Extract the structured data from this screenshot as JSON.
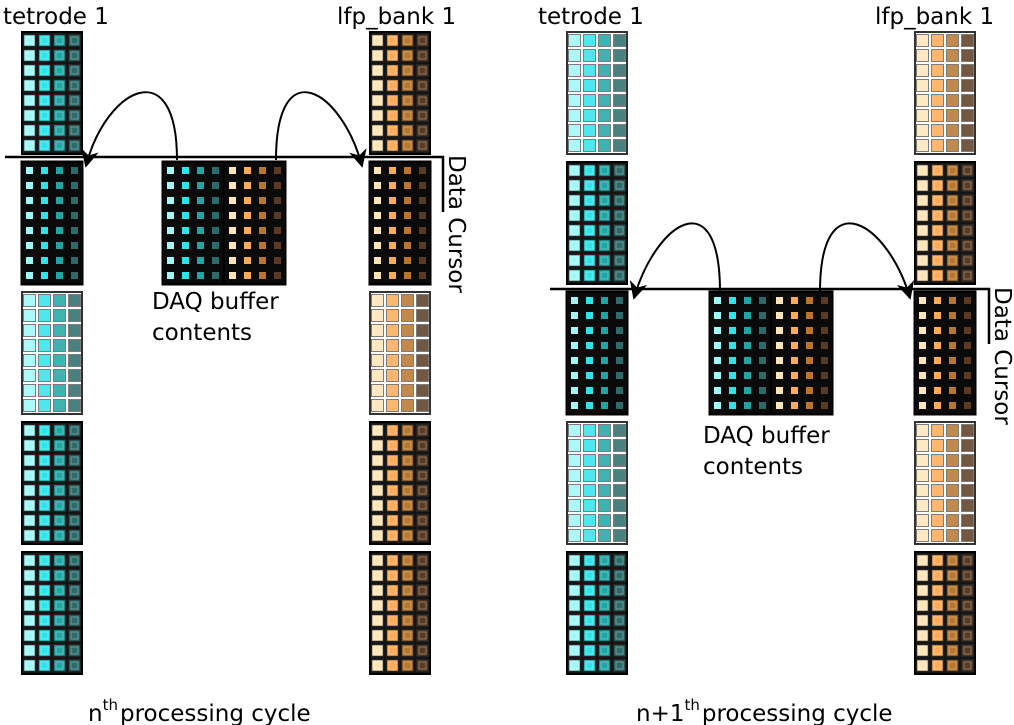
{
  "colors": {
    "tetrode": [
      "#9ff7f7",
      "#2fe3ea",
      "#1fa5a5",
      "#2b6b6b"
    ],
    "lfp": [
      "#ffe4b8",
      "#ffaa55",
      "#b8752b",
      "#5a3a22"
    ],
    "border_light": "#333333",
    "border_dark": "#000000",
    "line": "#000000"
  },
  "icons": {
    "arrow_copy": "curved-arrow-icon",
    "cursor_marker": "data-cursor-line"
  },
  "panels": [
    {
      "header_left": "tetrode 1",
      "header_right": "lfp_bank 1",
      "cursor_label": "Data Cursor",
      "buffer_label_line1": "DAQ buffer",
      "buffer_label_line2": "contents",
      "caption_prefix": "n",
      "caption_superscript": "th",
      "caption_suffix": "processing cycle"
    },
    {
      "header_left": "tetrode 1",
      "header_right": "lfp_bank 1",
      "cursor_label": "Data Cursor",
      "buffer_label_line1": "DAQ buffer",
      "buffer_label_line2": "contents",
      "caption_prefix": "n+1",
      "caption_superscript": "th",
      "caption_suffix": "processing cycle"
    }
  ]
}
